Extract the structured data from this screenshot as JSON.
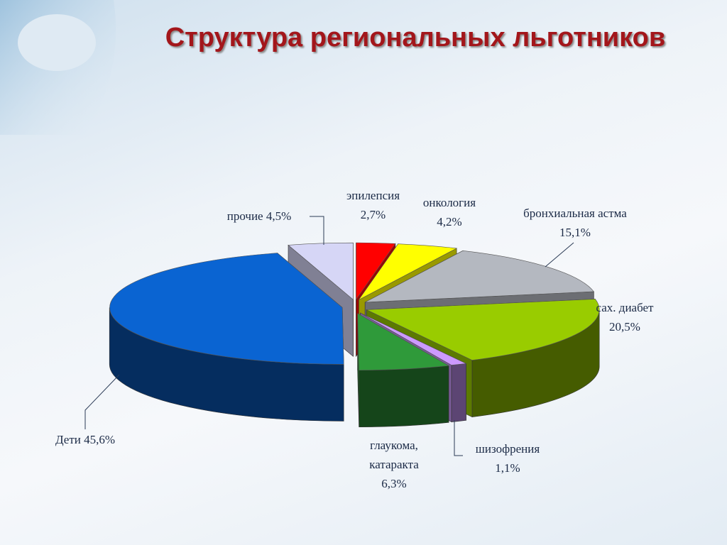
{
  "chart_data": {
    "type": "pie",
    "title": "Структура региональных льготников",
    "categories": [
      "эпилепсия",
      "онкология",
      "бронхиальная астма",
      "сах. диабет",
      "шизофрения",
      "глаукома, катаракта",
      "Дети",
      "прочие"
    ],
    "values": [
      2.7,
      4.2,
      15.1,
      20.5,
      1.1,
      6.3,
      45.6,
      4.5
    ],
    "value_labels": [
      "2,7%",
      "4,2%",
      "15,1%",
      "20,5%",
      "1,1%",
      "6,3%",
      "45,6%",
      "4,5%"
    ],
    "colors": [
      "#ff0000",
      "#ffff00",
      "#b4b8c0",
      "#99cc00",
      "#cc99ff",
      "#2f9a3a",
      "#0a64d2",
      "#d6d6f6"
    ]
  }
}
